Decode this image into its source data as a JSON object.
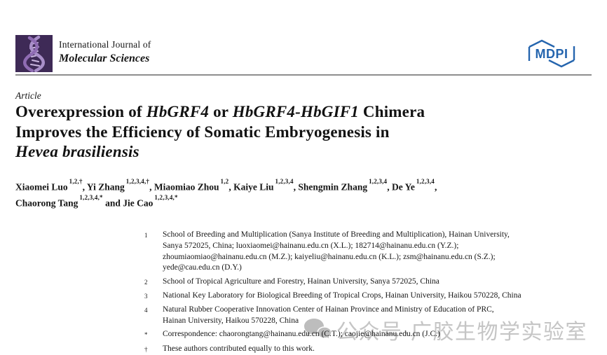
{
  "header": {
    "journal_name_line1": "International Journal of",
    "journal_name_line2": "Molecular Sciences",
    "mdpi_logo_text": "MDPI"
  },
  "article": {
    "kicker": "Article",
    "title_lines": [
      {
        "segments": [
          {
            "text": "Overexpression of ",
            "italic": false
          },
          {
            "text": "HbGRF4",
            "italic": true
          },
          {
            "text": " or ",
            "italic": false
          },
          {
            "text": "HbGRF4-HbGIF1",
            "italic": true
          },
          {
            "text": " Chimera",
            "italic": false
          }
        ]
      },
      {
        "segments": [
          {
            "text": "Improves the Efficiency of Somatic Embryogenesis in",
            "italic": false
          }
        ]
      },
      {
        "segments": [
          {
            "text": "Hevea brasiliensis",
            "italic": true
          }
        ]
      }
    ],
    "author_lines": [
      {
        "authors": [
          {
            "name": "Xiaomei Luo",
            "sup": "1,2,†",
            "after": ", "
          },
          {
            "name": "Yi Zhang",
            "sup": "1,2,3,4,†",
            "after": ", "
          },
          {
            "name": "Miaomiao Zhou",
            "sup": "1,2",
            "after": ", "
          },
          {
            "name": "Kaiye Liu",
            "sup": "1,2,3,4",
            "after": ", "
          },
          {
            "name": "Shengmin Zhang",
            "sup": "1,2,3,4",
            "after": ", "
          },
          {
            "name": "De Ye",
            "sup": "1,2,3,4",
            "after": ","
          }
        ]
      },
      {
        "authors": [
          {
            "name": "Chaorong Tang",
            "sup": "1,2,3,4,*",
            "after": " and "
          },
          {
            "name": "Jie Cao",
            "sup": "1,2,3,4,*",
            "after": ""
          }
        ]
      }
    ]
  },
  "affiliations": [
    {
      "marker": "1",
      "lines": [
        "School of Breeding and Multiplication (Sanya Institute of Breeding and Multiplication), Hainan University,",
        "Sanya 572025, China; luoxiaomei@hainanu.edu.cn (X.L.); 182714@hainanu.edu.cn (Y.Z.);",
        "zhoumiaomiao@hainanu.edu.cn (M.Z.); kaiyeliu@hainanu.edu.cn (K.L.); zsm@hainanu.edu.cn (S.Z.);",
        "yede@cau.edu.cn (D.Y.)"
      ]
    },
    {
      "marker": "2",
      "lines": [
        "School of Tropical Agriculture and Forestry, Hainan University, Sanya 572025, China"
      ]
    },
    {
      "marker": "3",
      "lines": [
        "National Key Laboratory for Biological Breeding of Tropical Crops, Hainan University, Haikou 570228, China"
      ]
    },
    {
      "marker": "4",
      "lines": [
        "Natural Rubber Cooperative Innovation Center of Hainan Province and Ministry of Education of PRC,",
        "Hainan University, Haikou 570228, China"
      ]
    },
    {
      "marker": "*",
      "lines": [
        "Correspondence: chaorongtang@hainanu.edu.cn (C.T.); caojie@hainanu.edu.cn (J.C.)"
      ]
    },
    {
      "marker": "†",
      "lines": [
        "These authors contributed equally to this work."
      ]
    }
  ],
  "watermark": {
    "icon": "wechat-icon",
    "text": "公众号·广胶生物学实验室"
  },
  "colors": {
    "logo_background": "#3e2a56",
    "logo_helix": "#a98fc9",
    "mdpi_blue": "#2565ae",
    "header_rule": "#8e8e8e",
    "body_text": "#161616",
    "watermark_gray": "#c5c5c5"
  }
}
